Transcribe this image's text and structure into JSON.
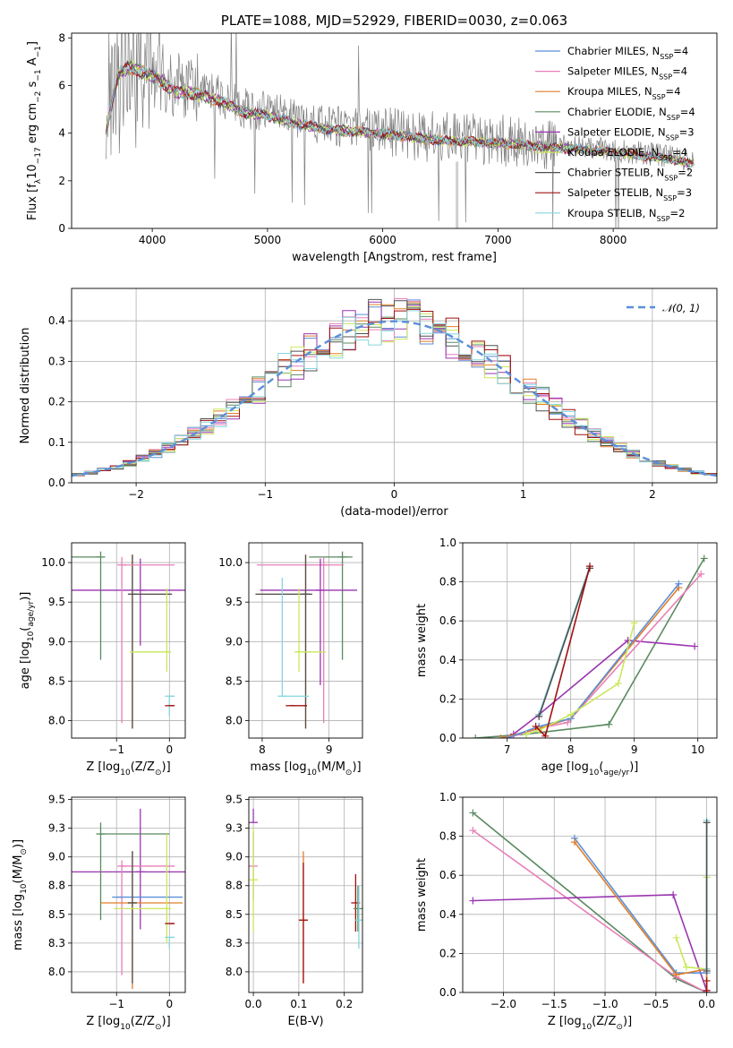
{
  "colors": {
    "Chabrier MILES": "#5b8fd8",
    "Salpeter MILES": "#e87fb8",
    "Kroupa MILES": "#e07f2a",
    "Chabrier ELODIE": "#5a8a60",
    "Salpeter ELODIE": "#9a35b0",
    "Kroupa ELODIE": "#c9e85b",
    "Chabrier STELIB": "#505050",
    "Salpeter STELIB": "#a01010",
    "Kroupa STELIB": "#86d6dd",
    "data": "#808080",
    "gaussian": "#5b8fd8",
    "grid": "#b0b0b0"
  },
  "chart_data": [
    {
      "type": "line",
      "id": "spectrum",
      "title": "PLATE=1088, MJD=52929, FIBERID=0030, z=0.063",
      "xlabel": "wavelength [Angstrom, rest frame]",
      "ylabel_parts": [
        "Flux [f",
        "λ",
        "10",
        "−17",
        " erg cm",
        "−2",
        " s",
        "−1",
        " A",
        "−1",
        "]"
      ],
      "xlim": [
        3300,
        8900
      ],
      "ylim": [
        0,
        8.2
      ],
      "xticks": [
        4000,
        5000,
        6000,
        7000,
        8000
      ],
      "yticks": [
        0,
        2,
        4,
        6,
        8
      ],
      "grid": false,
      "legend_position": "top-right",
      "legend": [
        {
          "name": "Chabrier MILES",
          "nssp": "4"
        },
        {
          "name": "Salpeter MILES",
          "nssp": "4"
        },
        {
          "name": "Kroupa MILES",
          "nssp": "4"
        },
        {
          "name": "Chabrier ELODIE",
          "nssp": "4"
        },
        {
          "name": "Salpeter ELODIE",
          "nssp": "3"
        },
        {
          "name": "Kroupa ELODIE",
          "nssp": "4"
        },
        {
          "name": "Chabrier STELIB",
          "nssp": "2"
        },
        {
          "name": "Salpeter STELIB",
          "nssp": "3"
        },
        {
          "name": "Kroupa STELIB",
          "nssp": "2"
        }
      ],
      "continuum": [
        [
          3600,
          4.2
        ],
        [
          3700,
          6.6
        ],
        [
          3800,
          7.0
        ],
        [
          3900,
          6.8
        ],
        [
          4000,
          6.6
        ],
        [
          4100,
          6.3
        ],
        [
          4200,
          5.9
        ],
        [
          4400,
          5.8
        ],
        [
          4600,
          5.5
        ],
        [
          4800,
          5.0
        ],
        [
          5000,
          4.9
        ],
        [
          5200,
          4.6
        ],
        [
          5500,
          4.3
        ],
        [
          6000,
          4.1
        ],
        [
          6500,
          3.8
        ],
        [
          7000,
          3.7
        ],
        [
          7500,
          3.5
        ],
        [
          8000,
          3.3
        ],
        [
          8500,
          3.0
        ],
        [
          8700,
          2.8
        ]
      ]
    },
    {
      "type": "line",
      "id": "residual-histogram",
      "xlabel": "(data-model)/error",
      "ylabel": "Normed distribution",
      "xlim": [
        -2.5,
        2.5
      ],
      "ylim": [
        0,
        0.48
      ],
      "xticks": [
        -2,
        -1,
        0,
        1,
        2
      ],
      "yticks": [
        0.0,
        0.1,
        0.2,
        0.3,
        0.4
      ],
      "grid": true,
      "legend_position": "top-right",
      "legend": [
        {
          "name": "𝒩(0, 1)",
          "style": "dashed"
        }
      ],
      "gaussian": {
        "mean": 0,
        "sigma": 1
      }
    },
    {
      "type": "scatter",
      "id": "age-vs-Z",
      "xlabel_parts": [
        "Z [log",
        "10",
        "(Z/Z",
        "⊙",
        ")]"
      ],
      "ylabel_parts": [
        "age  [log",
        "10",
        "(",
        "age/yr",
        ")]"
      ],
      "xlim": [
        -1.85,
        0.3
      ],
      "ylim": [
        7.78,
        10.25
      ],
      "xticks": [
        -1,
        0
      ],
      "yticks": [
        8.0,
        8.5,
        9.0,
        9.5,
        10.0
      ],
      "grid": true,
      "points": [
        {
          "model": "Chabrier ELODIE",
          "x": -1.3,
          "xerr": [
            1.3,
            0.0
          ],
          "y": 10.07,
          "yerr": [
            1.3,
            0.07
          ]
        },
        {
          "model": "Salpeter ELODIE",
          "x": -0.55,
          "xerr": [
            1.3,
            1.2
          ],
          "y": 9.65,
          "yerr": [
            0.7,
            0.4
          ]
        },
        {
          "model": "Kroupa MILES",
          "x": -0.7,
          "xerr": [
            0.0,
            0.75
          ],
          "y": 9.6,
          "yerr": [
            1.7,
            0.5
          ]
        },
        {
          "model": "Chabrier STELIB",
          "x": -0.7,
          "xerr": [
            0.0,
            0.75
          ],
          "y": 9.6,
          "yerr": [
            1.7,
            0.5
          ]
        },
        {
          "model": "Salpeter MILES",
          "x": -0.9,
          "xerr": [
            0.0,
            1.0
          ],
          "y": 9.97,
          "yerr": [
            2.0,
            0.1
          ]
        },
        {
          "model": "Kroupa ELODIE",
          "x": -0.05,
          "xerr": [
            0.7,
            0.05
          ],
          "y": 8.87,
          "yerr": [
            0.25,
            0.8
          ]
        },
        {
          "model": "Kroupa STELIB",
          "x": 0.0,
          "xerr": [
            0.0,
            0.1
          ],
          "y": 8.31,
          "yerr": [
            0.25,
            0.0
          ]
        },
        {
          "model": "Salpeter STELIB",
          "x": 0.0,
          "xerr": [
            0.0,
            0.1
          ],
          "y": 8.19,
          "yerr": [
            0.0,
            0.0
          ]
        }
      ]
    },
    {
      "type": "scatter",
      "id": "age-vs-mass",
      "xlabel_parts": [
        "mass [log",
        "10",
        "(M/M",
        "⊙",
        ")]"
      ],
      "xlim": [
        7.8,
        9.5
      ],
      "ylim": [
        7.78,
        10.25
      ],
      "xticks": [
        8,
        9
      ],
      "yticks": [
        8.0,
        8.5,
        9.0,
        9.5,
        10.0
      ],
      "grid": true,
      "points": [
        {
          "model": "Chabrier ELODIE",
          "x": 9.2,
          "xerr": [
            0.5,
            0.15
          ],
          "y": 10.07,
          "yerr": [
            1.3,
            0.07
          ]
        },
        {
          "model": "Salpeter MILES",
          "x": 8.92,
          "xerr": [
            1.0,
            0.3
          ],
          "y": 9.97,
          "yerr": [
            2.0,
            0.1
          ]
        },
        {
          "model": "Salpeter ELODIE",
          "x": 8.87,
          "xerr": [
            0.9,
            0.55
          ],
          "y": 9.65,
          "yerr": [
            1.2,
            0.4
          ]
        },
        {
          "model": "Kroupa MILES",
          "x": 8.65,
          "xerr": [
            0.75,
            0.05
          ],
          "y": 9.6,
          "yerr": [
            1.7,
            0.5
          ]
        },
        {
          "model": "Chabrier STELIB",
          "x": 8.65,
          "xerr": [
            0.75,
            0.1
          ],
          "y": 9.6,
          "yerr": [
            1.7,
            0.5
          ]
        },
        {
          "model": "Kroupa ELODIE",
          "x": 8.55,
          "xerr": [
            0.05,
            0.4
          ],
          "y": 8.87,
          "yerr": [
            0.25,
            0.8
          ]
        },
        {
          "model": "Kroupa STELIB",
          "x": 8.3,
          "xerr": [
            0.0,
            0.4
          ],
          "y": 8.31,
          "yerr": [
            0.0,
            1.5
          ]
        },
        {
          "model": "Salpeter STELIB",
          "x": 8.42,
          "xerr": [
            0.0,
            0.25
          ],
          "y": 8.19,
          "yerr": [
            0.0,
            0.0
          ]
        }
      ]
    },
    {
      "type": "line",
      "id": "mass-weight-vs-age",
      "xlabel_parts": [
        "age  [log",
        "10",
        "(",
        "age/yr",
        ")]"
      ],
      "ylabel": "mass weight",
      "xlim": [
        6.3,
        10.3
      ],
      "ylim": [
        0,
        1.0
      ],
      "xticks": [
        7,
        8,
        9,
        10
      ],
      "yticks": [
        0.0,
        0.2,
        0.4,
        0.6,
        0.8,
        1.0
      ],
      "grid": true,
      "series": [
        {
          "model": "Chabrier ELODIE",
          "x": [
            6.5,
            7.3,
            8.6,
            10.1
          ],
          "y": [
            0.0,
            0.02,
            0.07,
            0.92
          ]
        },
        {
          "model": "Salpeter ELODIE",
          "x": [
            7.1,
            7.5,
            8.9,
            9.95
          ],
          "y": [
            0.02,
            0.12,
            0.5,
            0.47
          ]
        },
        {
          "model": "Salpeter MILES",
          "x": [
            7.0,
            7.5,
            7.95,
            10.05
          ],
          "y": [
            0.0,
            0.05,
            0.08,
            0.84
          ]
        },
        {
          "model": "Kroupa MILES",
          "x": [
            6.9,
            7.5,
            8.0,
            9.7
          ],
          "y": [
            0.0,
            0.05,
            0.1,
            0.77
          ]
        },
        {
          "model": "Chabrier MILES",
          "x": [
            7.0,
            7.5,
            8.0,
            9.7
          ],
          "y": [
            0.0,
            0.06,
            0.1,
            0.79
          ]
        },
        {
          "model": "Kroupa ELODIE",
          "x": [
            7.3,
            7.5,
            8.0,
            8.75,
            9.0
          ],
          "y": [
            0.02,
            0.04,
            0.12,
            0.28,
            0.59
          ]
        },
        {
          "model": "Kroupa STELIB",
          "x": [
            7.5,
            8.3
          ],
          "y": [
            0.12,
            0.88
          ]
        },
        {
          "model": "Chabrier STELIB",
          "x": [
            7.5,
            8.3
          ],
          "y": [
            0.11,
            0.87
          ]
        },
        {
          "model": "Salpeter STELIB",
          "x": [
            7.45,
            7.6,
            8.3
          ],
          "y": [
            0.06,
            0.01,
            0.88
          ]
        }
      ]
    },
    {
      "type": "scatter",
      "id": "mass-vs-Z",
      "xlabel_parts": [
        "Z [log",
        "10",
        "(Z/Z",
        "⊙",
        ")]"
      ],
      "ylabel_parts": [
        "mass [log",
        "10",
        "(M/M",
        "⊙",
        ")]"
      ],
      "xlim": [
        -1.85,
        0.3
      ],
      "ylim": [
        7.82,
        9.52
      ],
      "xticks": [
        -1,
        0
      ],
      "yticks": [
        8.0,
        8.25,
        8.5,
        8.75,
        9.0,
        9.25,
        9.5
      ],
      "grid": true,
      "points": [
        {
          "model": "Salpeter ELODIE",
          "x": -0.55,
          "xerr": [
            1.3,
            1.2
          ],
          "y": 8.87,
          "yerr": [
            0.5,
            0.55
          ]
        },
        {
          "model": "Chabrier ELODIE",
          "x": -1.3,
          "xerr": [
            0.0,
            1.3
          ],
          "y": 9.2,
          "yerr": [
            0.75,
            0.1
          ]
        },
        {
          "model": "Salpeter MILES",
          "x": -0.9,
          "xerr": [
            0.0,
            1.0
          ],
          "y": 8.92,
          "yerr": [
            0.95,
            0.05
          ]
        },
        {
          "model": "Chabrier MILES",
          "x": -1.0,
          "xerr": [
            0.0,
            1.25
          ],
          "y": 8.65,
          "yerr": [
            0.0,
            0.0
          ]
        },
        {
          "model": "Kroupa MILES",
          "x": -0.7,
          "xerr": [
            0.6,
            0.95
          ],
          "y": 8.6,
          "yerr": [
            0.75,
            0.45
          ]
        },
        {
          "model": "Chabrier STELIB",
          "x": -0.7,
          "xerr": [
            0.0,
            0.0
          ],
          "y": 8.6,
          "yerr": [
            0.7,
            0.45
          ]
        },
        {
          "model": "Kroupa ELODIE",
          "x": -0.05,
          "xerr": [
            1.0,
            0.05
          ],
          "y": 8.55,
          "yerr": [
            0.3,
            0.65
          ]
        },
        {
          "model": "Salpeter STELIB",
          "x": 0.0,
          "xerr": [
            0.0,
            0.1
          ],
          "y": 8.42,
          "yerr": [
            0.0,
            0.0
          ]
        },
        {
          "model": "Kroupa STELIB",
          "x": 0.0,
          "xerr": [
            0.0,
            0.1
          ],
          "y": 8.3,
          "yerr": [
            0.1,
            0.0
          ]
        }
      ]
    },
    {
      "type": "scatter",
      "id": "mass-vs-EBV",
      "xlabel": "E(B-V)",
      "xlim": [
        -0.01,
        0.24
      ],
      "ylim": [
        7.82,
        9.52
      ],
      "xticks": [
        0.0,
        0.1,
        0.2
      ],
      "yticks": [
        8.0,
        8.25,
        8.5,
        8.75,
        9.0,
        9.25,
        9.5
      ],
      "grid": true,
      "points": [
        {
          "model": "Salpeter ELODIE",
          "x": 0.0,
          "y": 9.3,
          "yerr": [
            0.0,
            0.12
          ]
        },
        {
          "model": "Salpeter MILES",
          "x": 0.0,
          "y": 8.92,
          "yerr": [
            0.3,
            0.3
          ]
        },
        {
          "model": "Kroupa ELODIE",
          "x": 0.0,
          "y": 8.8,
          "yerr": [
            0.45,
            0.45
          ]
        },
        {
          "model": "Kroupa MILES",
          "x": 0.11,
          "y": 8.45,
          "yerr": [
            0.55,
            0.6
          ]
        },
        {
          "model": "Salpeter STELIB",
          "x": 0.11,
          "y": 8.45,
          "yerr": [
            0.55,
            0.5
          ]
        },
        {
          "model": "Salpeter STELIB",
          "x": 0.225,
          "y": 8.6,
          "yerr": [
            0.25,
            0.25
          ]
        },
        {
          "model": "Chabrier ELODIE",
          "x": 0.23,
          "y": 8.55,
          "yerr": [
            0.2,
            0.2
          ]
        },
        {
          "model": "Kroupa STELIB",
          "x": 0.232,
          "y": 8.45,
          "yerr": [
            0.25,
            0.3
          ]
        }
      ]
    },
    {
      "type": "line",
      "id": "mass-weight-vs-Z",
      "xlabel_parts": [
        "Z [log",
        "10",
        "(Z/Z",
        "⊙",
        ")]"
      ],
      "ylabel": "mass weight",
      "xlim": [
        -2.4,
        0.1
      ],
      "ylim": [
        0,
        1.0
      ],
      "xticks": [
        -2.0,
        -1.5,
        -1.0,
        -0.5,
        0.0
      ],
      "yticks": [
        0.0,
        0.2,
        0.4,
        0.6,
        0.8,
        1.0
      ],
      "grid": true,
      "series": [
        {
          "model": "Chabrier ELODIE",
          "x": [
            -2.3,
            -0.3,
            0.0
          ],
          "y": [
            0.92,
            0.07,
            0.0
          ]
        },
        {
          "model": "Salpeter MILES",
          "x": [
            -2.3,
            -0.3,
            0.0
          ],
          "y": [
            0.83,
            0.08,
            0.0
          ]
        },
        {
          "model": "Salpeter ELODIE",
          "x": [
            -2.3,
            -0.33,
            0.0
          ],
          "y": [
            0.47,
            0.5,
            0.01
          ]
        },
        {
          "model": "Chabrier MILES",
          "x": [
            -1.3,
            -0.3,
            0.0,
            0.0
          ],
          "y": [
            0.79,
            0.1,
            0.1,
            0.0
          ]
        },
        {
          "model": "Kroupa MILES",
          "x": [
            -1.3,
            -0.3,
            0.0,
            0.0
          ],
          "y": [
            0.77,
            0.09,
            0.12,
            0.0
          ]
        },
        {
          "model": "Kroupa ELODIE",
          "x": [
            -0.3,
            -0.2,
            0.0,
            0.0
          ],
          "y": [
            0.28,
            0.13,
            0.12,
            0.59
          ]
        },
        {
          "model": "Kroupa STELIB",
          "x": [
            0.0,
            0.0
          ],
          "y": [
            0.12,
            0.88
          ]
        },
        {
          "model": "Chabrier STELIB",
          "x": [
            0.0,
            0.0
          ],
          "y": [
            0.11,
            0.87
          ]
        },
        {
          "model": "Salpeter STELIB",
          "x": [
            0.0,
            0.0
          ],
          "y": [
            0.01,
            0.06
          ]
        }
      ]
    }
  ]
}
